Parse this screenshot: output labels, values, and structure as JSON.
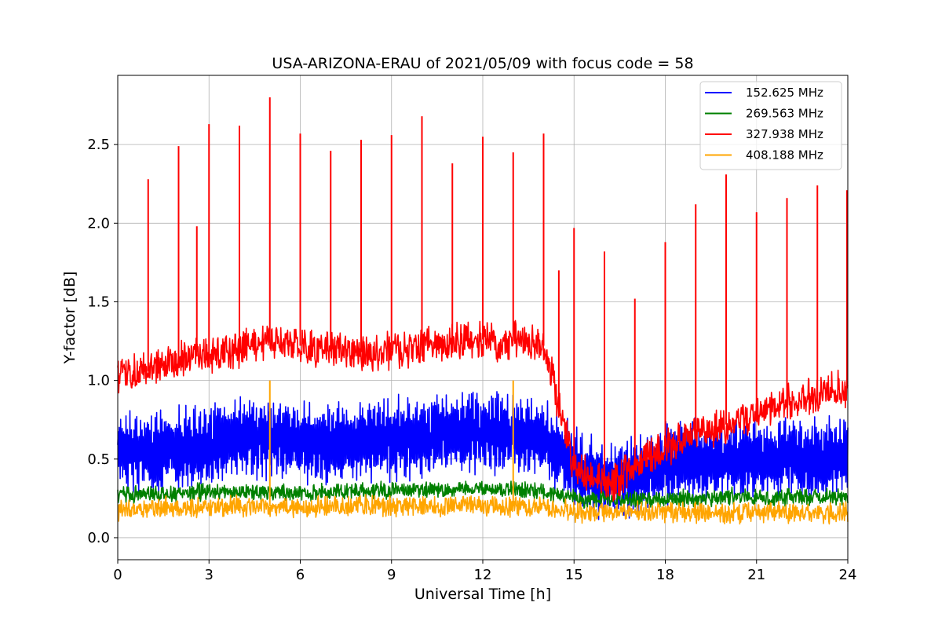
{
  "chart_data": {
    "type": "line",
    "title": "USA-ARIZONA-ERAU of 2021/05/09 with focus code = 58",
    "xlabel": "Universal Time [h]",
    "ylabel": "Y-factor [dB]",
    "xlim": [
      0,
      24
    ],
    "ylim": [
      -0.14,
      2.94
    ],
    "xticks": [
      0,
      3,
      6,
      9,
      12,
      15,
      18,
      21,
      24
    ],
    "xtick_labels": [
      "0",
      "3",
      "6",
      "9",
      "12",
      "15",
      "18",
      "21",
      "24"
    ],
    "yticks": [
      0.0,
      0.5,
      1.0,
      1.5,
      2.0,
      2.5
    ],
    "ytick_labels": [
      "0.0",
      "0.5",
      "1.0",
      "1.5",
      "2.0",
      "2.5"
    ],
    "grid": true,
    "legend_position": "top-right",
    "series": [
      {
        "name": "152.625 MHz",
        "color": "#0000ff",
        "x": [
          0,
          0.5,
          1,
          1.5,
          2,
          2.5,
          3,
          3.5,
          4,
          4.5,
          5,
          5.5,
          6,
          6.5,
          7,
          7.5,
          8,
          8.5,
          9,
          9.5,
          10,
          10.5,
          11,
          11.5,
          12,
          12.5,
          13,
          13.5,
          14,
          14.5,
          15,
          15.5,
          16,
          16.5,
          17,
          17.5,
          18,
          18.5,
          19,
          19.5,
          20,
          20.5,
          21,
          21.5,
          22,
          22.5,
          23,
          23.5,
          24
        ],
        "y": [
          0.58,
          0.56,
          0.55,
          0.56,
          0.57,
          0.57,
          0.58,
          0.6,
          0.62,
          0.63,
          0.63,
          0.62,
          0.61,
          0.6,
          0.6,
          0.6,
          0.61,
          0.62,
          0.63,
          0.64,
          0.64,
          0.65,
          0.66,
          0.66,
          0.66,
          0.66,
          0.65,
          0.64,
          0.63,
          0.55,
          0.45,
          0.4,
          0.36,
          0.37,
          0.4,
          0.43,
          0.46,
          0.48,
          0.49,
          0.5,
          0.5,
          0.5,
          0.51,
          0.5,
          0.5,
          0.51,
          0.51,
          0.51,
          0.5
        ]
      },
      {
        "name": "269.563 MHz",
        "color": "#008000",
        "x": [
          0,
          0.5,
          1,
          1.5,
          2,
          2.5,
          3,
          3.5,
          4,
          4.5,
          5,
          5.5,
          6,
          6.5,
          7,
          7.5,
          8,
          8.5,
          9,
          9.5,
          10,
          10.5,
          11,
          11.5,
          12,
          12.5,
          13,
          13.5,
          14,
          14.5,
          15,
          15.5,
          16,
          16.5,
          17,
          17.5,
          18,
          18.5,
          19,
          19.5,
          20,
          20.5,
          21,
          21.5,
          22,
          22.5,
          23,
          23.5,
          24
        ],
        "y": [
          0.27,
          0.27,
          0.28,
          0.28,
          0.28,
          0.29,
          0.29,
          0.29,
          0.29,
          0.29,
          0.29,
          0.29,
          0.29,
          0.29,
          0.29,
          0.29,
          0.3,
          0.3,
          0.3,
          0.3,
          0.3,
          0.31,
          0.31,
          0.31,
          0.31,
          0.31,
          0.3,
          0.3,
          0.29,
          0.27,
          0.25,
          0.24,
          0.24,
          0.24,
          0.24,
          0.24,
          0.25,
          0.25,
          0.25,
          0.25,
          0.26,
          0.26,
          0.26,
          0.26,
          0.26,
          0.26,
          0.26,
          0.26,
          0.26
        ]
      },
      {
        "name": "327.938 MHz",
        "color": "#ff0000",
        "x": [
          0,
          0.5,
          1,
          1.5,
          2,
          2.5,
          3,
          3.5,
          4,
          4.5,
          5,
          5.5,
          6,
          6.5,
          7,
          7.5,
          8,
          8.5,
          9,
          9.5,
          10,
          10.5,
          11,
          11.5,
          12,
          12.5,
          13,
          13.5,
          14,
          14.5,
          15,
          15.5,
          16,
          16.5,
          17,
          17.5,
          18,
          18.5,
          19,
          19.5,
          20,
          20.5,
          21,
          21.5,
          22,
          22.5,
          23,
          23.5,
          24
        ],
        "y": [
          1.02,
          1.05,
          1.06,
          1.1,
          1.12,
          1.15,
          1.16,
          1.18,
          1.2,
          1.22,
          1.24,
          1.24,
          1.22,
          1.2,
          1.2,
          1.18,
          1.18,
          1.18,
          1.19,
          1.2,
          1.22,
          1.22,
          1.25,
          1.25,
          1.26,
          1.25,
          1.25,
          1.24,
          1.22,
          0.85,
          0.45,
          0.38,
          0.35,
          0.38,
          0.45,
          0.52,
          0.58,
          0.62,
          0.66,
          0.7,
          0.72,
          0.76,
          0.8,
          0.84,
          0.86,
          0.88,
          0.9,
          0.93,
          0.95
        ],
        "spikes": [
          {
            "x": 1,
            "y": 2.28
          },
          {
            "x": 2,
            "y": 2.49
          },
          {
            "x": 2.6,
            "y": 1.98
          },
          {
            "x": 3,
            "y": 2.63
          },
          {
            "x": 4,
            "y": 2.62
          },
          {
            "x": 5,
            "y": 2.8
          },
          {
            "x": 6,
            "y": 2.57
          },
          {
            "x": 7,
            "y": 2.46
          },
          {
            "x": 8,
            "y": 2.53
          },
          {
            "x": 9,
            "y": 2.56
          },
          {
            "x": 10,
            "y": 2.68
          },
          {
            "x": 11,
            "y": 2.38
          },
          {
            "x": 12,
            "y": 2.55
          },
          {
            "x": 13,
            "y": 2.45
          },
          {
            "x": 14,
            "y": 2.57
          },
          {
            "x": 14.5,
            "y": 1.7
          },
          {
            "x": 15,
            "y": 1.97
          },
          {
            "x": 16,
            "y": 1.82
          },
          {
            "x": 17,
            "y": 1.52
          },
          {
            "x": 18,
            "y": 1.88
          },
          {
            "x": 19,
            "y": 2.12
          },
          {
            "x": 20,
            "y": 2.31
          },
          {
            "x": 21,
            "y": 2.07
          },
          {
            "x": 22,
            "y": 2.16
          },
          {
            "x": 23,
            "y": 2.24
          },
          {
            "x": 24,
            "y": 2.21
          }
        ]
      },
      {
        "name": "408.188 MHz",
        "color": "#ffa500",
        "x": [
          0,
          0.5,
          1,
          1.5,
          2,
          2.5,
          3,
          3.5,
          4,
          4.5,
          5,
          5.5,
          6,
          6.5,
          7,
          7.5,
          8,
          8.5,
          9,
          9.5,
          10,
          10.5,
          11,
          11.5,
          12,
          12.5,
          13,
          13.5,
          14,
          14.5,
          15,
          15.5,
          16,
          16.5,
          17,
          17.5,
          18,
          18.5,
          19,
          19.5,
          20,
          20.5,
          21,
          21.5,
          22,
          22.5,
          23,
          23.5,
          24
        ],
        "y": [
          0.18,
          0.18,
          0.18,
          0.19,
          0.19,
          0.19,
          0.19,
          0.19,
          0.2,
          0.2,
          0.2,
          0.2,
          0.2,
          0.2,
          0.2,
          0.2,
          0.2,
          0.2,
          0.2,
          0.2,
          0.2,
          0.2,
          0.2,
          0.2,
          0.2,
          0.2,
          0.2,
          0.2,
          0.19,
          0.18,
          0.17,
          0.16,
          0.16,
          0.16,
          0.16,
          0.16,
          0.16,
          0.16,
          0.16,
          0.16,
          0.16,
          0.16,
          0.16,
          0.16,
          0.16,
          0.16,
          0.16,
          0.16,
          0.16
        ],
        "spikes": [
          {
            "x": 5,
            "y": 1.0
          },
          {
            "x": 13,
            "y": 1.0
          }
        ]
      }
    ]
  }
}
